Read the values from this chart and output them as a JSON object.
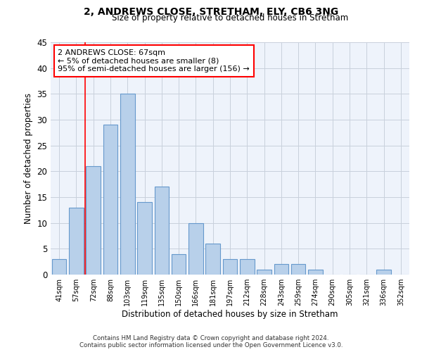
{
  "title1": "2, ANDREWS CLOSE, STRETHAM, ELY, CB6 3NG",
  "title2": "Size of property relative to detached houses in Stretham",
  "xlabel": "Distribution of detached houses by size in Stretham",
  "ylabel": "Number of detached properties",
  "categories": [
    "41sqm",
    "57sqm",
    "72sqm",
    "88sqm",
    "103sqm",
    "119sqm",
    "135sqm",
    "150sqm",
    "166sqm",
    "181sqm",
    "197sqm",
    "212sqm",
    "228sqm",
    "243sqm",
    "259sqm",
    "274sqm",
    "290sqm",
    "305sqm",
    "321sqm",
    "336sqm",
    "352sqm"
  ],
  "values": [
    3,
    13,
    21,
    29,
    35,
    14,
    17,
    4,
    10,
    6,
    3,
    3,
    1,
    2,
    2,
    1,
    0,
    0,
    0,
    1,
    0
  ],
  "bar_color": "#b8d0ea",
  "bar_edge_color": "#6699cc",
  "ylim": [
    0,
    45
  ],
  "yticks": [
    0,
    5,
    10,
    15,
    20,
    25,
    30,
    35,
    40,
    45
  ],
  "red_line_x": 1.5,
  "annotation_text": "2 ANDREWS CLOSE: 67sqm\n← 5% of detached houses are smaller (8)\n95% of semi-detached houses are larger (156) →",
  "footer1": "Contains HM Land Registry data © Crown copyright and database right 2024.",
  "footer2": "Contains public sector information licensed under the Open Government Licence v3.0.",
  "bg_color": "#ffffff",
  "plot_bg_color": "#eef3fb",
  "grid_color": "#c8d0dc"
}
